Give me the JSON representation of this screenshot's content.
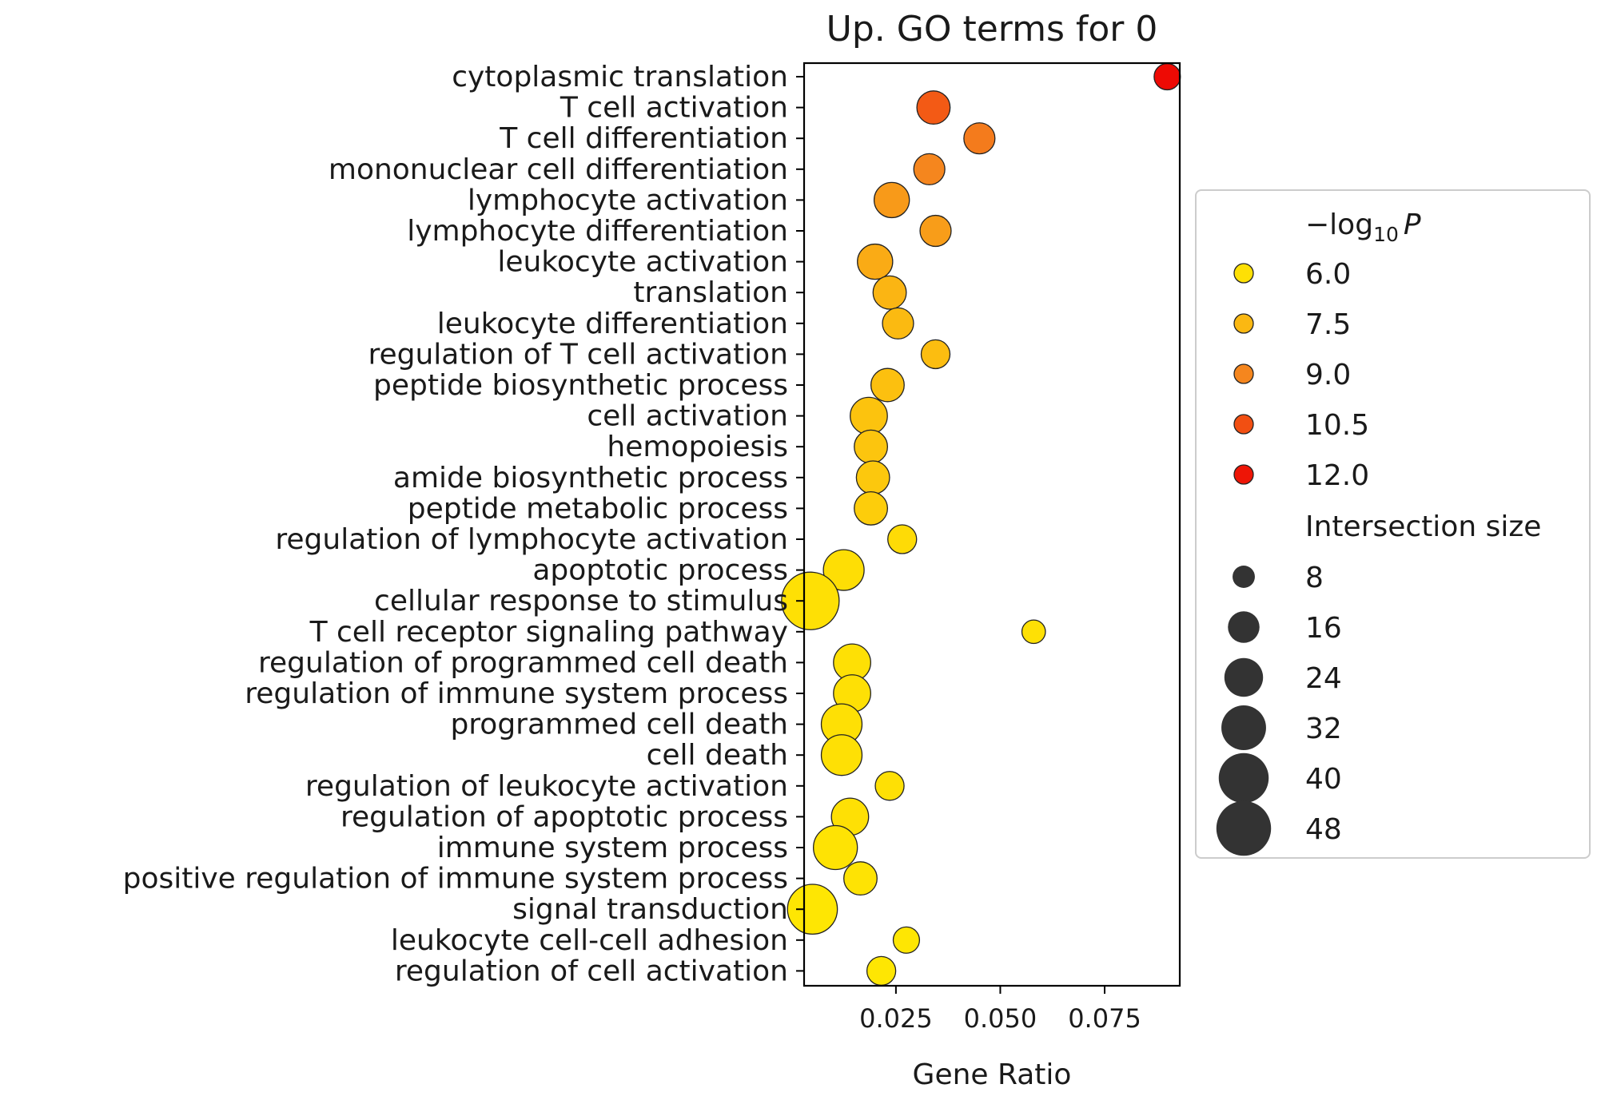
{
  "chart_data": {
    "type": "scatter",
    "title": "Up. GO terms for 0",
    "xlabel": "Gene Ratio",
    "ylabel": "",
    "xlim": [
      0.003,
      0.093
    ],
    "xticks": [
      0.025,
      0.05,
      0.075
    ],
    "xtick_labels": [
      "0.025",
      "0.050",
      "0.075"
    ],
    "grid": false,
    "legend_position": "right",
    "color_legend_title": "−log₁₀ P",
    "color_legend_title_parts": {
      "minus": "−",
      "log": "log",
      "sub": "10",
      "var": "P"
    },
    "color_scale": {
      "min": 5.5,
      "max": 12.5,
      "stops": [
        [
          0.0,
          "#ffee00"
        ],
        [
          0.3,
          "#fbb513"
        ],
        [
          0.5,
          "#f5861e"
        ],
        [
          0.72,
          "#f24e12"
        ],
        [
          1.0,
          "#ed0202"
        ]
      ]
    },
    "color_legend_values": [
      6.0,
      7.5,
      9.0,
      10.5,
      12.0
    ],
    "color_legend_labels": [
      "6.0",
      "7.5",
      "9.0",
      "10.5",
      "12.0"
    ],
    "size_legend_title": "Intersection size",
    "size_legend_values": [
      8,
      16,
      24,
      32,
      40,
      48
    ],
    "size_legend_labels": [
      "8",
      "16",
      "24",
      "32",
      "40",
      "48"
    ],
    "terms": [
      "cytoplasmic translation",
      "T cell activation",
      "T cell differentiation",
      "mononuclear cell differentiation",
      "lymphocyte activation",
      "lymphocyte differentiation",
      "leukocyte activation",
      "translation",
      "leukocyte differentiation",
      "regulation of T cell activation",
      "peptide biosynthetic process",
      "cell activation",
      "hemopoiesis",
      "amide biosynthetic process",
      "peptide metabolic process",
      "regulation of lymphocyte activation",
      "apoptotic process",
      "cellular response to stimulus",
      "T cell receptor signaling pathway",
      "regulation of programmed cell death",
      "regulation of immune system process",
      "programmed cell death",
      "cell death",
      "regulation of leukocyte activation",
      "regulation of apoptotic process",
      "immune system process",
      "positive regulation of immune system process",
      "signal transduction",
      "leukocyte cell-cell adhesion",
      "regulation of cell activation"
    ],
    "gene_ratio": [
      0.09,
      0.034,
      0.045,
      0.033,
      0.024,
      0.0345,
      0.02,
      0.0235,
      0.0255,
      0.0345,
      0.023,
      0.0185,
      0.019,
      0.0195,
      0.019,
      0.0265,
      0.0125,
      0.0045,
      0.058,
      0.0145,
      0.0145,
      0.012,
      0.012,
      0.0235,
      0.014,
      0.0105,
      0.0165,
      0.005,
      0.0275,
      0.0215
    ],
    "neg_log10_p": [
      12.3,
      10.2,
      9.3,
      9.0,
      8.4,
      8.3,
      7.9,
      7.6,
      7.4,
      7.3,
      7.2,
      7.1,
      7.0,
      6.9,
      6.7,
      6.2,
      6.1,
      6.0,
      6.0,
      6.0,
      6.0,
      6.0,
      6.0,
      6.0,
      6.0,
      5.9,
      5.9,
      5.8,
      5.8,
      5.8
    ],
    "intersection_size": [
      10,
      16,
      14,
      14,
      18,
      14,
      18,
      16,
      14,
      12,
      16,
      20,
      16,
      16,
      16,
      12,
      24,
      48,
      8,
      20,
      20,
      24,
      24,
      12,
      20,
      28,
      16,
      36,
      10,
      12
    ]
  }
}
